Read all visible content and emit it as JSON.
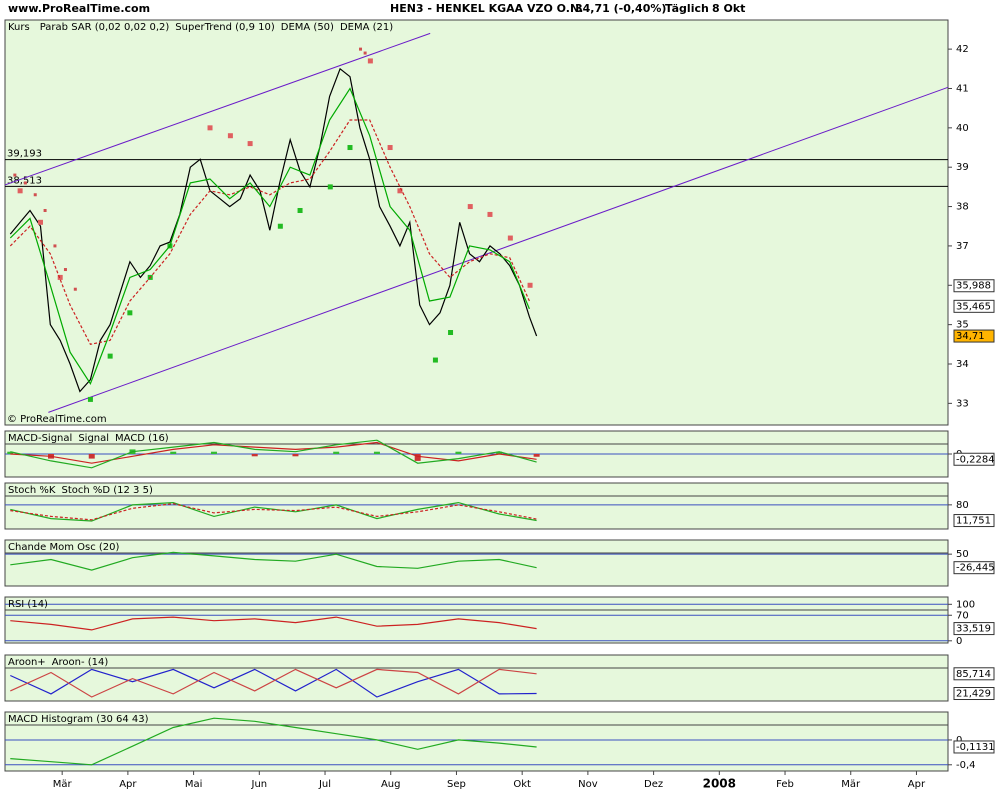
{
  "header": {
    "site": "www.ProRealTime.com",
    "title": "HEN3 - HENKEL KGAA VZO O.N.",
    "quote": "34,71 (-0,40%)",
    "period": "Täglich",
    "date": "8 Okt"
  },
  "chart_data": [
    {
      "type": "line",
      "title": "Kurs",
      "copyright": "© ProRealTime.com",
      "xlim": [
        2.13,
        16.48
      ],
      "ylim": [
        32.45,
        42.74
      ],
      "yticks": [
        33,
        34,
        35,
        36,
        37,
        38,
        39,
        40,
        41,
        42
      ],
      "grid": false,
      "x": [
        2.21,
        2.36,
        2.51,
        2.67,
        2.82,
        2.97,
        3.12,
        3.27,
        3.43,
        3.58,
        3.73,
        3.88,
        4.03,
        4.19,
        4.34,
        4.49,
        4.64,
        4.79,
        4.95,
        5.1,
        5.25,
        5.4,
        5.55,
        5.71,
        5.86,
        6.01,
        6.16,
        6.31,
        6.47,
        6.62,
        6.77,
        6.92,
        7.07,
        7.23,
        7.38,
        7.53,
        7.68,
        7.83,
        7.99,
        8.14,
        8.29,
        8.44,
        8.59,
        8.75,
        8.9,
        9.05,
        9.2,
        9.35,
        9.51,
        9.66,
        9.81,
        9.96,
        10.11,
        10.22
      ],
      "series": [
        {
          "style": "line",
          "color": "#000000",
          "values": [
            37.3,
            37.6,
            37.9,
            37.5,
            35.0,
            34.6,
            34.0,
            33.3,
            33.6,
            34.6,
            35.0,
            35.8,
            36.6,
            36.2,
            36.5,
            37.0,
            37.1,
            37.8,
            39.0,
            39.2,
            38.4,
            38.2,
            38.0,
            38.2,
            38.8,
            38.4,
            37.4,
            38.6,
            39.7,
            38.9,
            38.5,
            39.5,
            40.8,
            41.5,
            41.3,
            40.0,
            39.2,
            38.0,
            37.5,
            37.0,
            37.6,
            35.5,
            35.0,
            35.3,
            36.0,
            37.6,
            36.8,
            36.6,
            37.0,
            36.8,
            36.5,
            36.0,
            35.2,
            34.71
          ]
        },
        {
          "name": "Parab SAR (0,02 0,02 0,2)",
          "style": "dots",
          "size": 3,
          "color": "#d05050",
          "x": [
            2.28,
            2.44,
            2.59,
            2.74,
            2.89,
            3.05,
            3.2,
            7.54,
            7.61,
            7.69
          ],
          "values": [
            38.8,
            38.6,
            38.3,
            37.9,
            37.0,
            36.4,
            35.9,
            42.0,
            41.9,
            41.7
          ]
        },
        {
          "name": "SuperTrend (0,9 10)",
          "style": "dots",
          "size": 5,
          "color": "#d05050",
          "x": [
            2.36,
            2.67,
            2.97,
            3.43,
            3.73,
            4.03,
            4.34,
            4.64,
            5.25,
            5.56,
            5.86,
            6.32,
            6.62,
            7.08,
            7.38,
            7.69,
            7.99,
            8.14,
            8.68,
            8.91,
            9.21,
            9.51,
            9.82,
            10.12
          ],
          "values": [
            38.4,
            37.6,
            36.2,
            33.1,
            34.2,
            35.3,
            36.2,
            37.0,
            40.0,
            39.8,
            39.6,
            37.5,
            37.9,
            38.5,
            39.5,
            41.7,
            39.5,
            38.4,
            34.1,
            34.8,
            38.0,
            37.8,
            37.2,
            36.0
          ],
          "colors": [
            "#e06060",
            "#e06060",
            "#e06060",
            "#22bb22",
            "#22bb22",
            "#22bb22",
            "#22bb22",
            "#22bb22",
            "#e06060",
            "#e06060",
            "#e06060",
            "#22bb22",
            "#22bb22",
            "#22bb22",
            "#22bb22",
            "#e06060",
            "#e06060",
            "#e06060",
            "#22bb22",
            "#22bb22",
            "#e06060",
            "#e06060",
            "#e06060",
            "#e06060"
          ]
        },
        {
          "name": "DEMA (50)",
          "style": "dashed",
          "color": "#cc2222",
          "x": [
            2.21,
            2.51,
            2.82,
            3.12,
            3.43,
            3.73,
            4.03,
            4.34,
            4.64,
            4.95,
            5.25,
            5.55,
            5.86,
            6.16,
            6.47,
            6.77,
            7.07,
            7.38,
            7.68,
            7.99,
            8.29,
            8.59,
            8.9,
            9.2,
            9.51,
            9.81,
            10.11
          ],
          "values": [
            37.0,
            37.5,
            36.8,
            35.5,
            34.5,
            34.6,
            35.6,
            36.2,
            36.8,
            37.8,
            38.4,
            38.3,
            38.5,
            38.3,
            38.6,
            38.7,
            39.4,
            40.2,
            40.2,
            39.0,
            38.0,
            36.8,
            36.2,
            36.6,
            36.8,
            36.7,
            35.6
          ]
        },
        {
          "name": "DEMA (21)",
          "style": "line",
          "color": "#00aa00",
          "x": [
            2.21,
            2.51,
            2.82,
            3.12,
            3.43,
            3.73,
            4.03,
            4.34,
            4.64,
            4.95,
            5.25,
            5.55,
            5.86,
            6.16,
            6.47,
            6.77,
            7.07,
            7.38,
            7.68,
            7.99,
            8.29,
            8.59,
            8.9,
            9.2,
            9.51,
            9.81,
            10.11
          ],
          "values": [
            37.2,
            37.7,
            36.0,
            34.3,
            33.5,
            34.8,
            36.2,
            36.4,
            37.0,
            38.6,
            38.7,
            38.2,
            38.6,
            38.0,
            39.0,
            38.8,
            40.2,
            41.0,
            39.8,
            38.0,
            37.4,
            35.6,
            35.7,
            37.0,
            36.9,
            36.6,
            35.4
          ]
        }
      ],
      "hlines": [
        {
          "value": 39.193,
          "label": "39,193"
        },
        {
          "value": 38.513,
          "label": "38,513"
        }
      ],
      "trendlines": [
        {
          "x": [
            2.13,
            8.6
          ],
          "y": [
            38.55,
            42.4
          ],
          "color": "#6a1bc8"
        },
        {
          "x": [
            2.79,
            16.48
          ],
          "y": [
            32.77,
            41.03
          ],
          "color": "#6a1bc8"
        }
      ],
      "markers": [
        {
          "value": 35.988,
          "label": "35,988",
          "color": "#ffffff"
        },
        {
          "value": 35.465,
          "label": "35,465",
          "color": "#ffffff"
        },
        {
          "value": 34.71,
          "label": "34,71",
          "color": "#ffb400"
        }
      ]
    },
    {
      "type": "line",
      "xlim": [
        2.13,
        16.48
      ],
      "ylim": [
        -1,
        1
      ],
      "grid": true,
      "yticks": [
        0
      ],
      "x": [
        2.21,
        2.83,
        3.45,
        4.07,
        4.69,
        5.31,
        5.93,
        6.55,
        7.17,
        7.79,
        8.41,
        9.03,
        9.65,
        10.22
      ],
      "series": [
        {
          "name": "MACD-Signal",
          "style": "bar",
          "color": "#cc3333",
          "values": [
            0.1,
            -0.2,
            -0.2,
            0.2,
            0.1,
            0.1,
            -0.1,
            -0.1,
            0.1,
            0.1,
            -0.3,
            0.1,
            0.1,
            -0.12
          ]
        },
        {
          "name": "Signal",
          "style": "line",
          "color": "#cc2222",
          "values": [
            0.0,
            -0.1,
            -0.4,
            -0.1,
            0.2,
            0.4,
            0.3,
            0.2,
            0.3,
            0.5,
            -0.1,
            -0.3,
            0.0,
            -0.2284
          ]
        },
        {
          "name": "MACD (16)",
          "style": "line",
          "color": "#22aa22",
          "values": [
            0.1,
            -0.3,
            -0.6,
            0.1,
            0.3,
            0.5,
            0.2,
            0.1,
            0.4,
            0.6,
            -0.4,
            -0.2,
            0.1,
            -0.35
          ]
        }
      ],
      "markers": [
        {
          "value": -0.2284,
          "label": "-0,2284",
          "color": "#ffffff"
        }
      ]
    },
    {
      "type": "line",
      "xlim": [
        2.13,
        16.48
      ],
      "ylim": [
        -25,
        175
      ],
      "grid": true,
      "yticks": [
        80
      ],
      "x": [
        2.21,
        2.83,
        3.45,
        4.07,
        4.69,
        5.31,
        5.93,
        6.55,
        7.17,
        7.79,
        8.41,
        9.03,
        9.65,
        10.22
      ],
      "series": [
        {
          "name": "Stoch %K",
          "style": "line",
          "color": "#22aa22",
          "values": [
            60,
            20,
            10,
            80,
            90,
            30,
            70,
            50,
            80,
            20,
            60,
            90,
            40,
            11.751
          ]
        },
        {
          "name": "Stoch %D (12 3 5)",
          "style": "dashed",
          "color": "#cc2222",
          "values": [
            55,
            30,
            15,
            65,
            85,
            45,
            60,
            55,
            70,
            30,
            50,
            80,
            50,
            18
          ]
        }
      ],
      "markers": [
        {
          "value": 11.751,
          "label": "11,751",
          "color": "#ffffff"
        }
      ]
    },
    {
      "type": "line",
      "xlim": [
        2.13,
        16.48
      ],
      "ylim": [
        -130,
        130
      ],
      "grid": true,
      "yticks": [
        50
      ],
      "x": [
        2.21,
        2.83,
        3.45,
        4.07,
        4.69,
        5.31,
        5.93,
        6.55,
        7.17,
        7.79,
        8.41,
        9.03,
        9.65,
        10.22
      ],
      "series": [
        {
          "name": "Chande Mom Osc (20)",
          "style": "line",
          "color": "#22aa22",
          "values": [
            -10,
            20,
            -40,
            30,
            60,
            40,
            20,
            10,
            50,
            -20,
            -30,
            10,
            20,
            -26.445
          ]
        }
      ],
      "markers": [
        {
          "value": -26.445,
          "label": "-26,445",
          "color": "#ffffff"
        }
      ]
    },
    {
      "type": "line",
      "xlim": [
        2.13,
        16.48
      ],
      "ylim": [
        -6,
        120
      ],
      "grid": true,
      "yticks": [
        100,
        70,
        0
      ],
      "x": [
        2.21,
        2.83,
        3.45,
        4.07,
        4.69,
        5.31,
        5.93,
        6.55,
        7.17,
        7.79,
        8.41,
        9.03,
        9.65,
        10.22
      ],
      "series": [
        {
          "name": "RSI (14)",
          "style": "line",
          "color": "#cc2222",
          "values": [
            55,
            45,
            30,
            60,
            65,
            55,
            60,
            50,
            65,
            40,
            45,
            60,
            50,
            33.519
          ]
        }
      ],
      "markers": [
        {
          "value": 33.519,
          "label": "33,519",
          "color": "#ffffff"
        }
      ]
    },
    {
      "type": "line",
      "xlim": [
        2.13,
        16.48
      ],
      "ylim": [
        -3,
        147
      ],
      "grid": true,
      "x": [
        2.21,
        2.83,
        3.45,
        4.07,
        4.69,
        5.31,
        5.93,
        6.55,
        7.17,
        7.79,
        8.41,
        9.03,
        9.65,
        10.22
      ],
      "series": [
        {
          "name": "Aroon+",
          "style": "line",
          "color": "#2222cc",
          "values": [
            80,
            20,
            100,
            60,
            100,
            40,
            100,
            30,
            100,
            10,
            60,
            100,
            20,
            21.429
          ]
        },
        {
          "name": "Aroon- (14)",
          "style": "line",
          "color": "#cc4444",
          "values": [
            30,
            90,
            10,
            70,
            20,
            90,
            30,
            100,
            40,
            100,
            90,
            20,
            100,
            85.714
          ]
        }
      ],
      "markers": [
        {
          "value": 85.714,
          "label": "85,714",
          "color": "#ffffff"
        },
        {
          "value": 21.429,
          "label": "21,429",
          "color": "#ffffff"
        }
      ]
    },
    {
      "type": "line",
      "xlim": [
        2.13,
        16.48
      ],
      "ylim": [
        -0.5,
        0.45
      ],
      "grid": true,
      "yticks": [
        0,
        {
          "value": -0.4,
          "label": "-0,4"
        }
      ],
      "x": [
        2.21,
        2.83,
        3.45,
        4.07,
        4.69,
        5.31,
        5.93,
        6.55,
        7.17,
        7.79,
        8.41,
        9.03,
        9.65,
        10.22
      ],
      "series": [
        {
          "name": "MACD Histogram (30 64 43)",
          "style": "line",
          "color": "#22aa22",
          "values": [
            -0.3,
            -0.35,
            -0.4,
            -0.1,
            0.2,
            0.35,
            0.3,
            0.2,
            0.1,
            0.0,
            -0.15,
            0.0,
            -0.05,
            -0.1131
          ]
        }
      ],
      "markers": [
        {
          "value": -0.1131,
          "label": "-0,1131",
          "color": "#ffffff"
        }
      ],
      "xticks": [
        {
          "value": 3,
          "label": "Mär"
        },
        {
          "value": 4,
          "label": "Apr"
        },
        {
          "value": 5,
          "label": "Mai"
        },
        {
          "value": 6,
          "label": "Jun"
        },
        {
          "value": 7,
          "label": "Jul"
        },
        {
          "value": 8,
          "label": "Aug"
        },
        {
          "value": 9,
          "label": "Sep"
        },
        {
          "value": 10,
          "label": "Okt"
        },
        {
          "value": 11,
          "label": "Nov"
        },
        {
          "value": 12,
          "label": "Dez"
        },
        {
          "value": 13,
          "label": "2008"
        },
        {
          "value": 14,
          "label": "Feb"
        },
        {
          "value": 15,
          "label": "Mär"
        },
        {
          "value": 16,
          "label": "Apr"
        }
      ]
    }
  ]
}
